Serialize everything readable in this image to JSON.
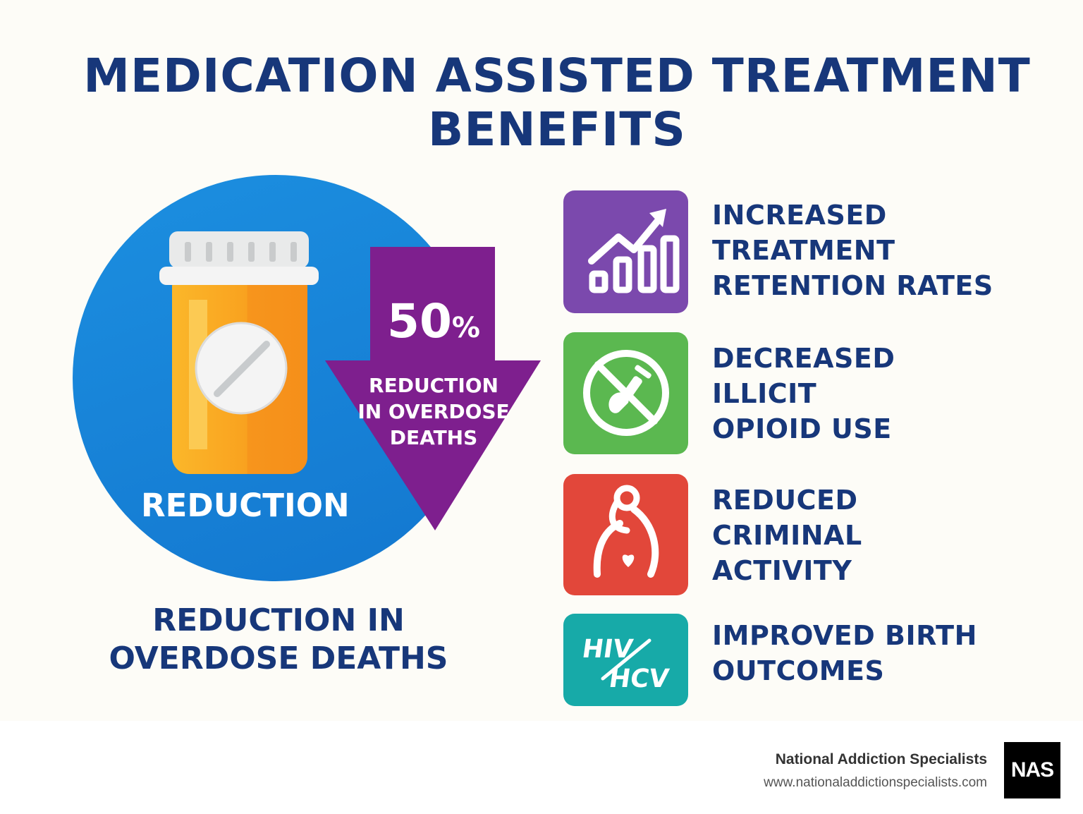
{
  "title": {
    "line1": "MEDICATION ASSISTED TREATMENT",
    "line2": "BENEFITS"
  },
  "highlight": {
    "circle_label": "REDUCTION",
    "percent": "50",
    "percent_sign": "%",
    "arrow_text": [
      "REDUCTION",
      "IN OVERDOSE",
      "DEATHS"
    ],
    "caption": [
      "REDUCTION IN",
      "OVERDOSE DEATHS"
    ]
  },
  "benefits": [
    {
      "icon": "chart-up-icon",
      "color": "#7b49ad",
      "lines": [
        "INCREASED",
        "TREATMENT",
        "RETENTION RATES"
      ]
    },
    {
      "icon": "no-syringe-icon",
      "color": "#5bb850",
      "lines": [
        "DECREASED",
        "ILLICIT",
        "OPIOID USE"
      ]
    },
    {
      "icon": "pregnant-person-icon",
      "color": "#e2473a",
      "lines": [
        "REDUCED",
        "CRIMINAL",
        "ACTIVITY"
      ]
    },
    {
      "icon": "hiv-hcv-icon",
      "color": "#17aaa8",
      "icon_text": [
        "HIV",
        "HCV"
      ],
      "lines": [
        "IMPROVED BIRTH",
        "OUTCOMES"
      ]
    }
  ],
  "footer": {
    "name": "National Addiction Specialists",
    "url": "www.nationaladdictionspecialists.com",
    "logo": "NAS"
  },
  "colors": {
    "navy": "#17377a",
    "blue": "#1a88dc",
    "purple": "#7e1f8e",
    "orange": "#f7a31e"
  }
}
